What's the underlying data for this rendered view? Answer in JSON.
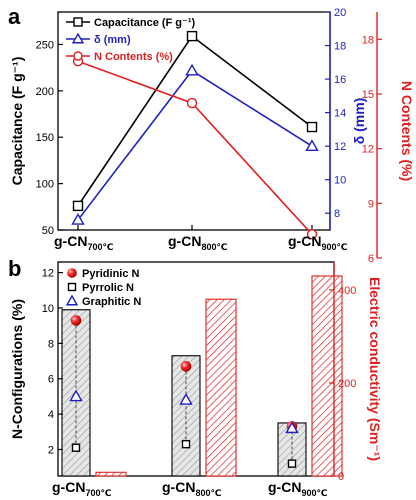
{
  "panels": [
    {
      "letter": "a",
      "chart_data": {
        "type": "line",
        "categories": [
          {
            "main": "g-CN",
            "sub": "700℃"
          },
          {
            "main": "g-CN",
            "sub": "800℃"
          },
          {
            "main": "g-CN",
            "sub": "900℃"
          }
        ],
        "axes": {
          "left": {
            "label": "Capacitance (F g⁻¹)",
            "ylim": [
              50,
              285
            ],
            "ticks": [
              50,
              100,
              150,
              200,
              250
            ],
            "color": "#000000"
          },
          "right1": {
            "label": "δ (mm)",
            "ylim": [
              7,
              20
            ],
            "ticks": [
              8,
              10,
              12,
              14,
              16,
              18,
              20
            ],
            "color": "#1f1fbf"
          },
          "right2": {
            "label": "N Contents (%)",
            "ylim": [
              6,
              19.5
            ],
            "ticks": [
              6,
              9,
              12,
              15,
              18
            ],
            "color": "#e02020"
          }
        },
        "series": [
          {
            "name": "Capacitance (F g⁻¹)",
            "axis": "left",
            "marker": "square",
            "color": "#000000",
            "values": [
              76,
              259,
              161
            ]
          },
          {
            "name": "δ (mm)",
            "axis": "right1",
            "marker": "triangle",
            "color": "#1f1fbf",
            "values": [
              7.6,
              16.5,
              12.0
            ]
          },
          {
            "name": "N Contents (%)",
            "axis": "right2",
            "marker": "circle",
            "color": "#e02020",
            "values": [
              16.8,
              14.5,
              7.3
            ]
          }
        ],
        "legend_position": "top-left"
      }
    },
    {
      "letter": "b",
      "chart_data": {
        "type": "bar",
        "categories": [
          {
            "main": "g-CN",
            "sub": "700℃"
          },
          {
            "main": "g-CN",
            "sub": "800℃"
          },
          {
            "main": "g-CN",
            "sub": "900℃"
          }
        ],
        "axes": {
          "left": {
            "label": "N-Configurations (%)",
            "ylim": [
              0.5,
              12.6
            ],
            "ticks": [
              2,
              4,
              6,
              8,
              10,
              12
            ],
            "color": "#000000"
          },
          "right": {
            "label": "Electric conductivity (Sm⁻¹)",
            "ylim": [
              0,
              460
            ],
            "ticks": [
              0,
              200,
              400
            ],
            "color": "#e02020"
          }
        },
        "bars": [
          {
            "name": "N-Configurations total",
            "axis": "left",
            "values": [
              9.9,
              7.3,
              3.5
            ],
            "color": "#000000"
          },
          {
            "name": "Electric conductivity",
            "axis": "right",
            "values": [
              8,
              380,
              430
            ],
            "color": "#e02020"
          }
        ],
        "series": [
          {
            "name": "Pyridinic N",
            "marker": "sphere",
            "color": "#e02020",
            "values": [
              9.3,
              6.7,
              3.3
            ]
          },
          {
            "name": "Pyrrolic N",
            "marker": "square",
            "color": "#000000",
            "values": [
              2.1,
              2.3,
              1.2
            ]
          },
          {
            "name": "Graphitic N",
            "marker": "triangle",
            "color": "#1f1fbf",
            "values": [
              5.0,
              4.8,
              3.2
            ]
          }
        ],
        "legend_position": "top-left"
      }
    }
  ]
}
